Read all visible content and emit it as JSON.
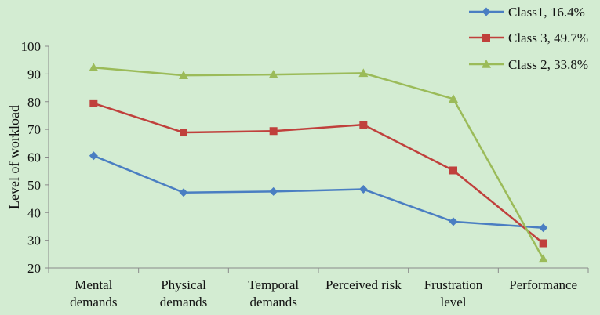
{
  "chart_data": {
    "type": "line",
    "title": "",
    "xlabel": "",
    "ylabel": "Level of workload",
    "ylim": [
      20,
      100
    ],
    "yticks": [
      20,
      30,
      40,
      50,
      60,
      70,
      80,
      90,
      100
    ],
    "grid": false,
    "legend_position": "top-right",
    "categories": [
      [
        "Mental",
        "demands"
      ],
      [
        "Physical",
        "demands"
      ],
      [
        "Temporal",
        "demands"
      ],
      [
        "Perceived risk"
      ],
      [
        "Frustration",
        "level"
      ],
      [
        "Performance"
      ]
    ],
    "series": [
      {
        "name": "Class1, 16.4%",
        "color": "#4a7ec2",
        "marker": "diamond",
        "values": [
          60.5,
          47.2,
          47.6,
          48.4,
          36.7,
          34.5
        ]
      },
      {
        "name": "Class 3, 49.7%",
        "color": "#c0403c",
        "marker": "square",
        "values": [
          79.4,
          68.9,
          69.4,
          71.7,
          55.2,
          28.9
        ]
      },
      {
        "name": "Class 2, 33.8%",
        "color": "#9bbb59",
        "marker": "triangle",
        "values": [
          92.3,
          89.5,
          89.8,
          90.3,
          81.0,
          23.3
        ]
      }
    ]
  }
}
